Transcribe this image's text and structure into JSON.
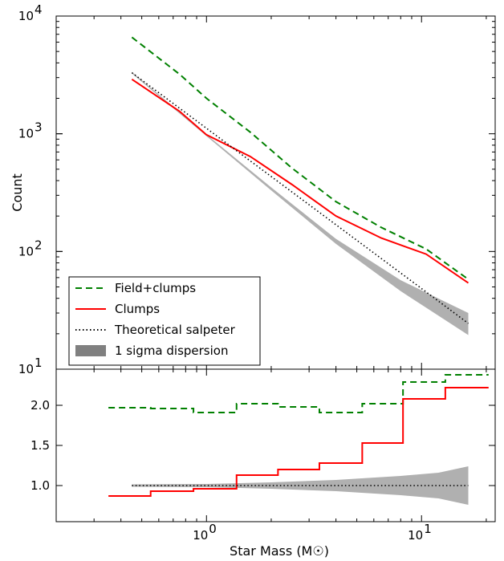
{
  "chart_data": [
    {
      "type": "line",
      "panel": "top",
      "xscale": "log",
      "yscale": "log",
      "xlim": [
        0.2,
        22
      ],
      "ylim": [
        10,
        10000
      ],
      "xlabel": "",
      "ylabel": "Count",
      "yticks": [
        {
          "value": 10,
          "base": "10",
          "exp": "1"
        },
        {
          "value": 100,
          "base": "10",
          "exp": "2"
        },
        {
          "value": 1000,
          "base": "10",
          "exp": "3"
        },
        {
          "value": 10000,
          "base": "10",
          "exp": "4"
        }
      ],
      "grid": false,
      "legend": {
        "placement": "lower-left",
        "entries": [
          {
            "label": "Field+clumps",
            "color": "#008000",
            "style": "dashed"
          },
          {
            "label": "Clumps",
            "color": "#ff0000",
            "style": "solid"
          },
          {
            "label": "Theoretical salpeter",
            "color": "#000000",
            "style": "dotted"
          },
          {
            "label": "1 sigma dispersion",
            "color": "#808080",
            "style": "patch"
          }
        ]
      },
      "series": [
        {
          "name": "Field+clumps",
          "color": "#008000",
          "style": "dashed",
          "x": [
            0.45,
            0.75,
            1.0,
            1.6,
            2.5,
            4.0,
            6.5,
            10.5,
            16.5
          ],
          "y": [
            6600,
            3200,
            2000,
            1030,
            510,
            265,
            160,
            105,
            58
          ]
        },
        {
          "name": "Clumps",
          "color": "#ff0000",
          "style": "solid",
          "x": [
            0.45,
            0.75,
            1.0,
            1.6,
            2.5,
            4.0,
            6.5,
            10.5,
            16.5
          ],
          "y": [
            2900,
            1550,
            980,
            640,
            370,
            200,
            130,
            95,
            54
          ]
        },
        {
          "name": "Theoretical salpeter",
          "color": "#000000",
          "style": "dotted",
          "x": [
            0.45,
            16.5
          ],
          "y": [
            3300,
            24.5
          ]
        }
      ],
      "band": {
        "name": "1 sigma dispersion",
        "color": "#b0b0b0",
        "x": [
          0.45,
          1.0,
          2.0,
          4.0,
          8.0,
          16.5
        ],
        "lower": [
          3250,
          955,
          330,
          116,
          46,
          19.5
        ],
        "upper": [
          3350,
          985,
          350,
          128,
          57,
          30
        ]
      }
    },
    {
      "type": "line",
      "panel": "bottom",
      "xscale": "log",
      "yscale": "linear",
      "xlim": [
        0.2,
        22
      ],
      "ylim": [
        0.55,
        2.45
      ],
      "xlabel": "Star Mass (M☉)",
      "ylabel": "",
      "xticks": [
        {
          "value": 1,
          "base": "10",
          "exp": "0"
        },
        {
          "value": 10,
          "base": "10",
          "exp": "1"
        }
      ],
      "yticks": [
        {
          "value": 1.0,
          "label": "1.0"
        },
        {
          "value": 1.5,
          "label": "1.5"
        },
        {
          "value": 2.0,
          "label": "2.0"
        }
      ],
      "grid": false,
      "series": [
        {
          "name": "Field+clumps",
          "color": "#008000",
          "style": "dashed-steps",
          "edges": [
            0.35,
            0.55,
            0.87,
            1.38,
            2.15,
            3.35,
            5.3,
            8.2,
            12.9,
            20.5
          ],
          "values": [
            1.97,
            1.96,
            1.91,
            2.02,
            1.98,
            1.91,
            2.02,
            2.29,
            2.38
          ]
        },
        {
          "name": "Clumps",
          "color": "#ff0000",
          "style": "steps",
          "edges": [
            0.35,
            0.55,
            0.87,
            1.38,
            2.15,
            3.35,
            5.3,
            8.2,
            12.9,
            20.5
          ],
          "values": [
            0.87,
            0.93,
            0.96,
            1.13,
            1.2,
            1.28,
            1.53,
            2.08,
            2.22
          ]
        },
        {
          "name": "Theoretical salpeter",
          "color": "#000000",
          "style": "dotted",
          "x": [
            0.45,
            16.5
          ],
          "y": [
            1.0,
            1.0
          ]
        }
      ],
      "band": {
        "name": "1 sigma dispersion",
        "color": "#b0b0b0",
        "x": [
          0.45,
          1.0,
          2.0,
          4.0,
          8.0,
          12.0,
          16.5
        ],
        "lower": [
          0.985,
          0.98,
          0.96,
          0.93,
          0.88,
          0.84,
          0.76
        ],
        "upper": [
          1.015,
          1.02,
          1.04,
          1.07,
          1.12,
          1.16,
          1.24
        ]
      }
    }
  ]
}
